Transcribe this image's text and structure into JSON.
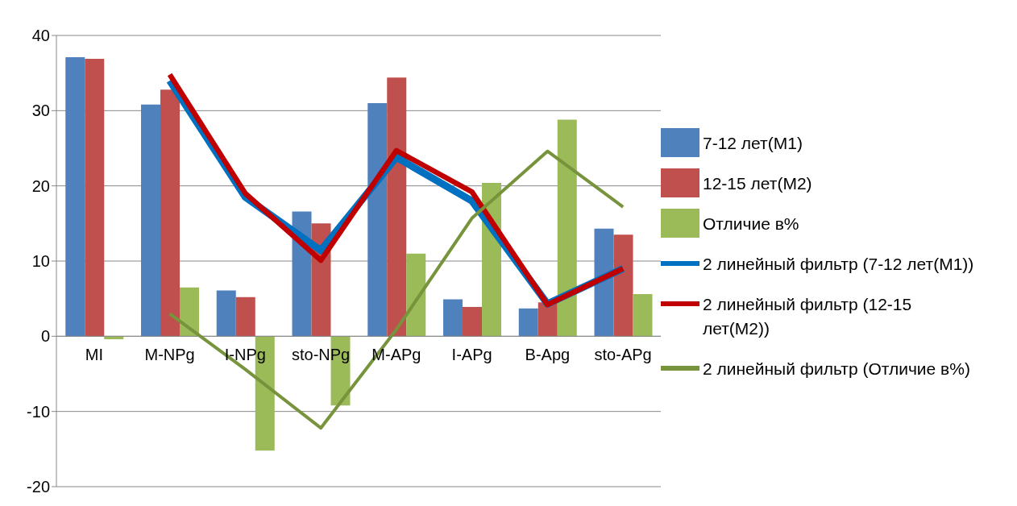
{
  "chart_data": {
    "type": "bar",
    "categories": [
      "MI",
      "M-NPg",
      "I-NPg",
      "sto-NPg",
      "M-APg",
      "I-APg",
      "B-Apg",
      "sto-APg"
    ],
    "series": [
      {
        "name": "7-12 лет(M1)",
        "color": "#4f81bd",
        "values": [
          37.1,
          30.8,
          6.1,
          16.6,
          31.0,
          4.9,
          3.7,
          14.3
        ]
      },
      {
        "name": "12-15 лет(M2)",
        "color": "#c0504d",
        "values": [
          36.9,
          32.8,
          5.2,
          15.0,
          34.4,
          3.9,
          4.5,
          13.5
        ]
      },
      {
        "name": "Отличие в%",
        "color": "#9bbb59",
        "values": [
          -0.4,
          6.5,
          -15.2,
          -9.2,
          11.0,
          20.4,
          28.8,
          5.6
        ]
      },
      {
        "name": "2 линейный фильтр (7-12 лет(M1))",
        "type": "line",
        "color": "#0070c0",
        "values": [
          null,
          34.0,
          18.5,
          11.4,
          23.8,
          18.0,
          4.3,
          9.0
        ]
      },
      {
        "name": "2 линейный фильтр (12-15 лет(M2))",
        "type": "line",
        "color": "#c00000",
        "values": [
          null,
          34.8,
          19.0,
          10.1,
          24.7,
          19.2,
          4.2,
          9.0
        ]
      },
      {
        "name": "2 линейный фильтр (Отличие в%)",
        "type": "line",
        "color": "#77933c",
        "values": [
          null,
          3.0,
          -4.4,
          -12.2,
          0.9,
          15.7,
          24.6,
          17.2
        ]
      }
    ],
    "ylim": [
      -20,
      40
    ],
    "yticks": [
      -20,
      -10,
      0,
      10,
      20,
      30,
      40
    ],
    "grid": "y",
    "legend": "right",
    "marker": "none"
  }
}
